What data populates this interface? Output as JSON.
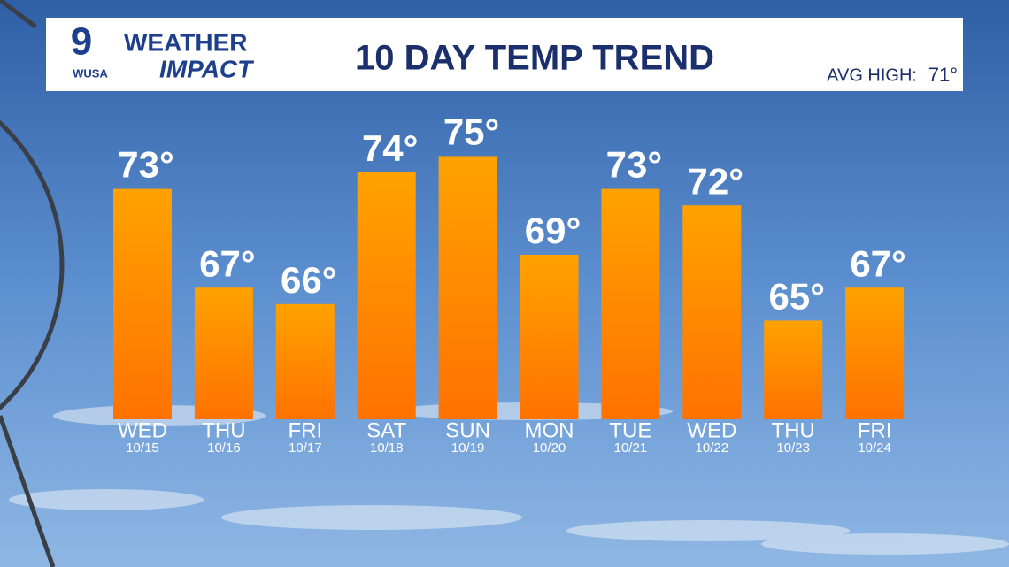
{
  "logo": {
    "number": "9",
    "station": "WUSA",
    "brand_top": "WEATHER",
    "brand_bottom": "IMPACT"
  },
  "chart_data": {
    "type": "bar",
    "title": "10 DAY TEMP TREND",
    "avg_high_label": "AVG HIGH:",
    "avg_high": "71°",
    "categories": [
      "WED",
      "THU",
      "FRI",
      "SAT",
      "SUN",
      "MON",
      "TUE",
      "WED",
      "THU",
      "FRI"
    ],
    "dates": [
      "10/15",
      "10/16",
      "10/17",
      "10/18",
      "10/19",
      "10/20",
      "10/21",
      "10/22",
      "10/23",
      "10/24"
    ],
    "values": [
      73,
      67,
      66,
      74,
      75,
      69,
      73,
      72,
      65,
      67
    ],
    "value_labels": [
      "73°",
      "67°",
      "66°",
      "74°",
      "75°",
      "69°",
      "73°",
      "72°",
      "65°",
      "67°"
    ],
    "color": "#ff8a00"
  }
}
